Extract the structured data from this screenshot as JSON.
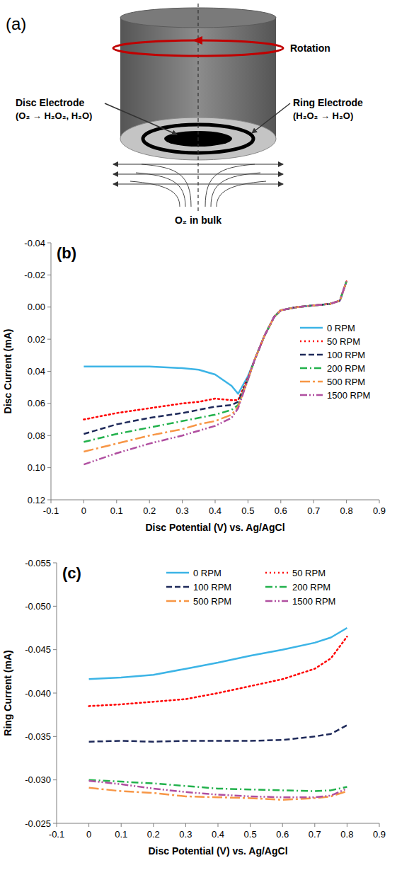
{
  "diagram": {
    "label": "(a)",
    "rotation": "Rotation",
    "disc_electrode": {
      "name": "Disc Electrode",
      "reaction": "(O₂ → H₂O₂, H₂O)"
    },
    "ring_electrode": {
      "name": "Ring Electrode",
      "reaction": "(H₂O₂ → H₂O)"
    },
    "bulk": "O₂ in bulk"
  },
  "chart_data": [
    {
      "type": "line",
      "title": "(b)",
      "x_label": "Disc Potential (V) vs. Ag/AgCl",
      "y_label": "Disc Current (mA)",
      "x": [
        0,
        0.1,
        0.2,
        0.3,
        0.35,
        0.4,
        0.45,
        0.47,
        0.5,
        0.52,
        0.55,
        0.58,
        0.6,
        0.65,
        0.7,
        0.75,
        0.78,
        0.8
      ],
      "series": [
        {
          "name": "0 RPM",
          "color": "#3cb4e6",
          "line_style": "solid",
          "values": [
            0.037,
            0.037,
            0.037,
            0.038,
            0.039,
            0.042,
            0.049,
            0.054,
            0.043,
            0.033,
            0.018,
            0.006,
            0.002,
            0,
            -0.001,
            -0.002,
            -0.004,
            -0.016
          ]
        },
        {
          "name": "50 RPM",
          "color": "#ff0000",
          "line_style": "dotted",
          "values": [
            0.07,
            0.066,
            0.063,
            0.06,
            0.059,
            0.057,
            0.058,
            0.058,
            0.044,
            0.033,
            0.018,
            0.006,
            0.002,
            0,
            -0.001,
            -0.002,
            -0.004,
            -0.016
          ]
        },
        {
          "name": "100 RPM",
          "color": "#1f2a5a",
          "line_style": "dashed",
          "values": [
            0.079,
            0.073,
            0.069,
            0.066,
            0.064,
            0.062,
            0.061,
            0.059,
            0.045,
            0.033,
            0.018,
            0.006,
            0.002,
            0,
            -0.001,
            -0.002,
            -0.004,
            -0.016
          ]
        },
        {
          "name": "200 RPM",
          "color": "#22b14c",
          "line_style": "dashdot",
          "values": [
            0.084,
            0.079,
            0.075,
            0.071,
            0.069,
            0.067,
            0.064,
            0.061,
            0.045,
            0.033,
            0.018,
            0.006,
            0.002,
            0,
            -0.001,
            -0.002,
            -0.004,
            -0.016
          ]
        },
        {
          "name": "500 RPM",
          "color": "#f79646",
          "line_style": "longdashdot",
          "values": [
            0.09,
            0.085,
            0.08,
            0.076,
            0.073,
            0.071,
            0.067,
            0.062,
            0.045,
            0.033,
            0.018,
            0.006,
            0.002,
            0,
            -0.001,
            -0.002,
            -0.004,
            -0.016
          ]
        },
        {
          "name": "1500 RPM",
          "color": "#b04fa0",
          "line_style": "dashdotdot",
          "values": [
            0.098,
            0.091,
            0.085,
            0.08,
            0.077,
            0.074,
            0.069,
            0.063,
            0.045,
            0.033,
            0.018,
            0.006,
            0.002,
            0,
            -0.001,
            -0.002,
            -0.004,
            -0.016
          ]
        }
      ],
      "xlim": [
        -0.1,
        0.9
      ],
      "xticks": [
        -0.1,
        0,
        0.1,
        0.2,
        0.3,
        0.4,
        0.5,
        0.6,
        0.7,
        0.8,
        0.9
      ],
      "ylim": [
        0.12,
        -0.04
      ],
      "yticks": [
        -0.04,
        -0.02,
        {
          "value": 0,
          "label": "0.00"
        },
        0.02,
        0.04,
        0.06,
        0.08,
        {
          "value": 0.1,
          "label": "0.10"
        },
        0.12
      ],
      "grid": false,
      "legend": "right"
    },
    {
      "type": "line",
      "title": "(c)",
      "x_label": "Disc Potential (V) vs. Ag/AgCl",
      "y_label": "Ring Current (mA)",
      "x": [
        0,
        0.1,
        0.2,
        0.3,
        0.4,
        0.5,
        0.6,
        0.7,
        0.75,
        0.8
      ],
      "series": [
        {
          "name": "0 RPM",
          "color": "#3cb4e6",
          "line_style": "solid",
          "values": [
            -0.0416,
            -0.0418,
            -0.0421,
            -0.0428,
            -0.0435,
            -0.0443,
            -0.045,
            -0.0458,
            -0.0464,
            -0.0475
          ]
        },
        {
          "name": "50 RPM",
          "color": "#ff0000",
          "line_style": "dotted",
          "values": [
            -0.0385,
            -0.0387,
            -0.039,
            -0.0393,
            -0.04,
            -0.0408,
            -0.0416,
            -0.0428,
            -0.044,
            -0.0465
          ]
        },
        {
          "name": "100 RPM",
          "color": "#1f2a5a",
          "line_style": "dashed",
          "values": [
            -0.0344,
            -0.0345,
            -0.0344,
            -0.0345,
            -0.0345,
            -0.0345,
            -0.0346,
            -0.035,
            -0.0353,
            -0.0363
          ]
        },
        {
          "name": "200 RPM",
          "color": "#22b14c",
          "line_style": "dashdot",
          "values": [
            -0.03,
            -0.0298,
            -0.0296,
            -0.0293,
            -0.029,
            -0.0289,
            -0.0288,
            -0.0287,
            -0.0288,
            -0.0292
          ]
        },
        {
          "name": "500 RPM",
          "color": "#f79646",
          "line_style": "longdashdot",
          "values": [
            -0.0291,
            -0.0287,
            -0.0285,
            -0.0281,
            -0.028,
            -0.0279,
            -0.0277,
            -0.0279,
            -0.0281,
            -0.0287
          ]
        },
        {
          "name": "1500 RPM",
          "color": "#b04fa0",
          "line_style": "dashdotdot",
          "values": [
            -0.0299,
            -0.0295,
            -0.029,
            -0.0286,
            -0.0283,
            -0.0281,
            -0.028,
            -0.028,
            -0.0282,
            -0.029
          ]
        }
      ],
      "xlim": [
        -0.1,
        0.9
      ],
      "xticks": [
        -0.1,
        0,
        0.1,
        0.2,
        0.3,
        0.4,
        0.5,
        0.6,
        0.7,
        0.8,
        0.9
      ],
      "ylim": [
        -0.025,
        -0.055
      ],
      "yticks": [
        -0.055,
        {
          "value": -0.05,
          "label": "-0.050"
        },
        -0.045,
        {
          "value": -0.04,
          "label": "-0.040"
        },
        -0.035,
        {
          "value": -0.03,
          "label": "-0.030"
        },
        -0.025
      ],
      "grid": false,
      "legend": "top"
    }
  ]
}
